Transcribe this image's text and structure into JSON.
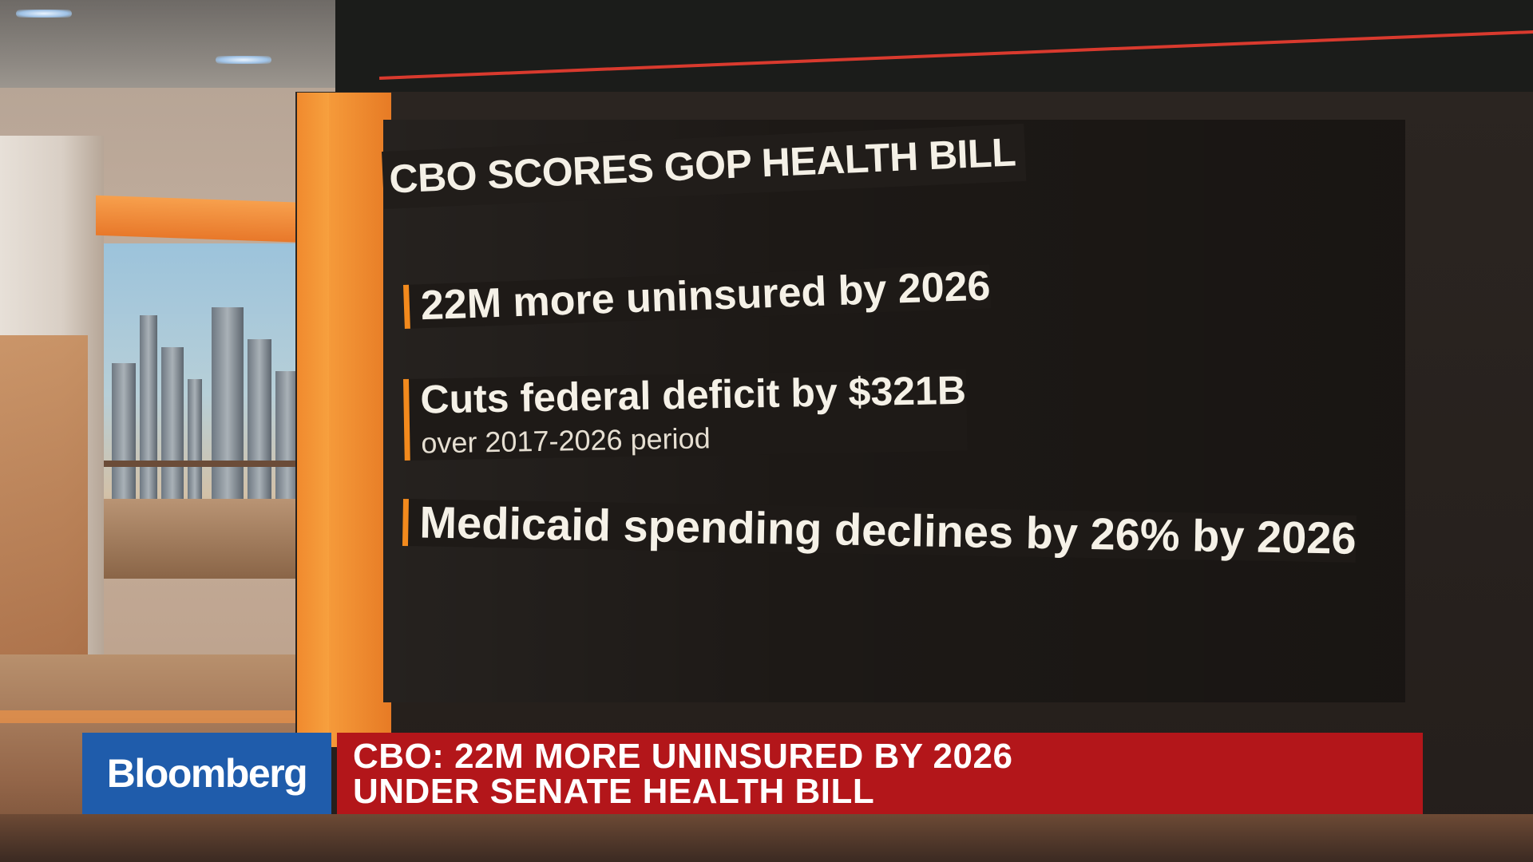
{
  "graphic": {
    "headline": "CBO SCORES GOP HEALTH BILL",
    "stats": [
      {
        "text": "22M more uninsured by 2026"
      },
      {
        "text": "Cuts federal deficit by $321B",
        "subtext": "over 2017-2026 period"
      },
      {
        "text": "Medicaid spending declines by 26% by 2026"
      }
    ],
    "accent_color": "#f28a1d"
  },
  "lower_third": {
    "brand": "Bloomberg",
    "headline_line1": "CBO: 22M MORE UNINSURED BY 2026",
    "headline_line2": "UNDER SENATE HEALTH BILL",
    "brand_color": "#1f5cab",
    "headline_color": "#b3161a"
  }
}
